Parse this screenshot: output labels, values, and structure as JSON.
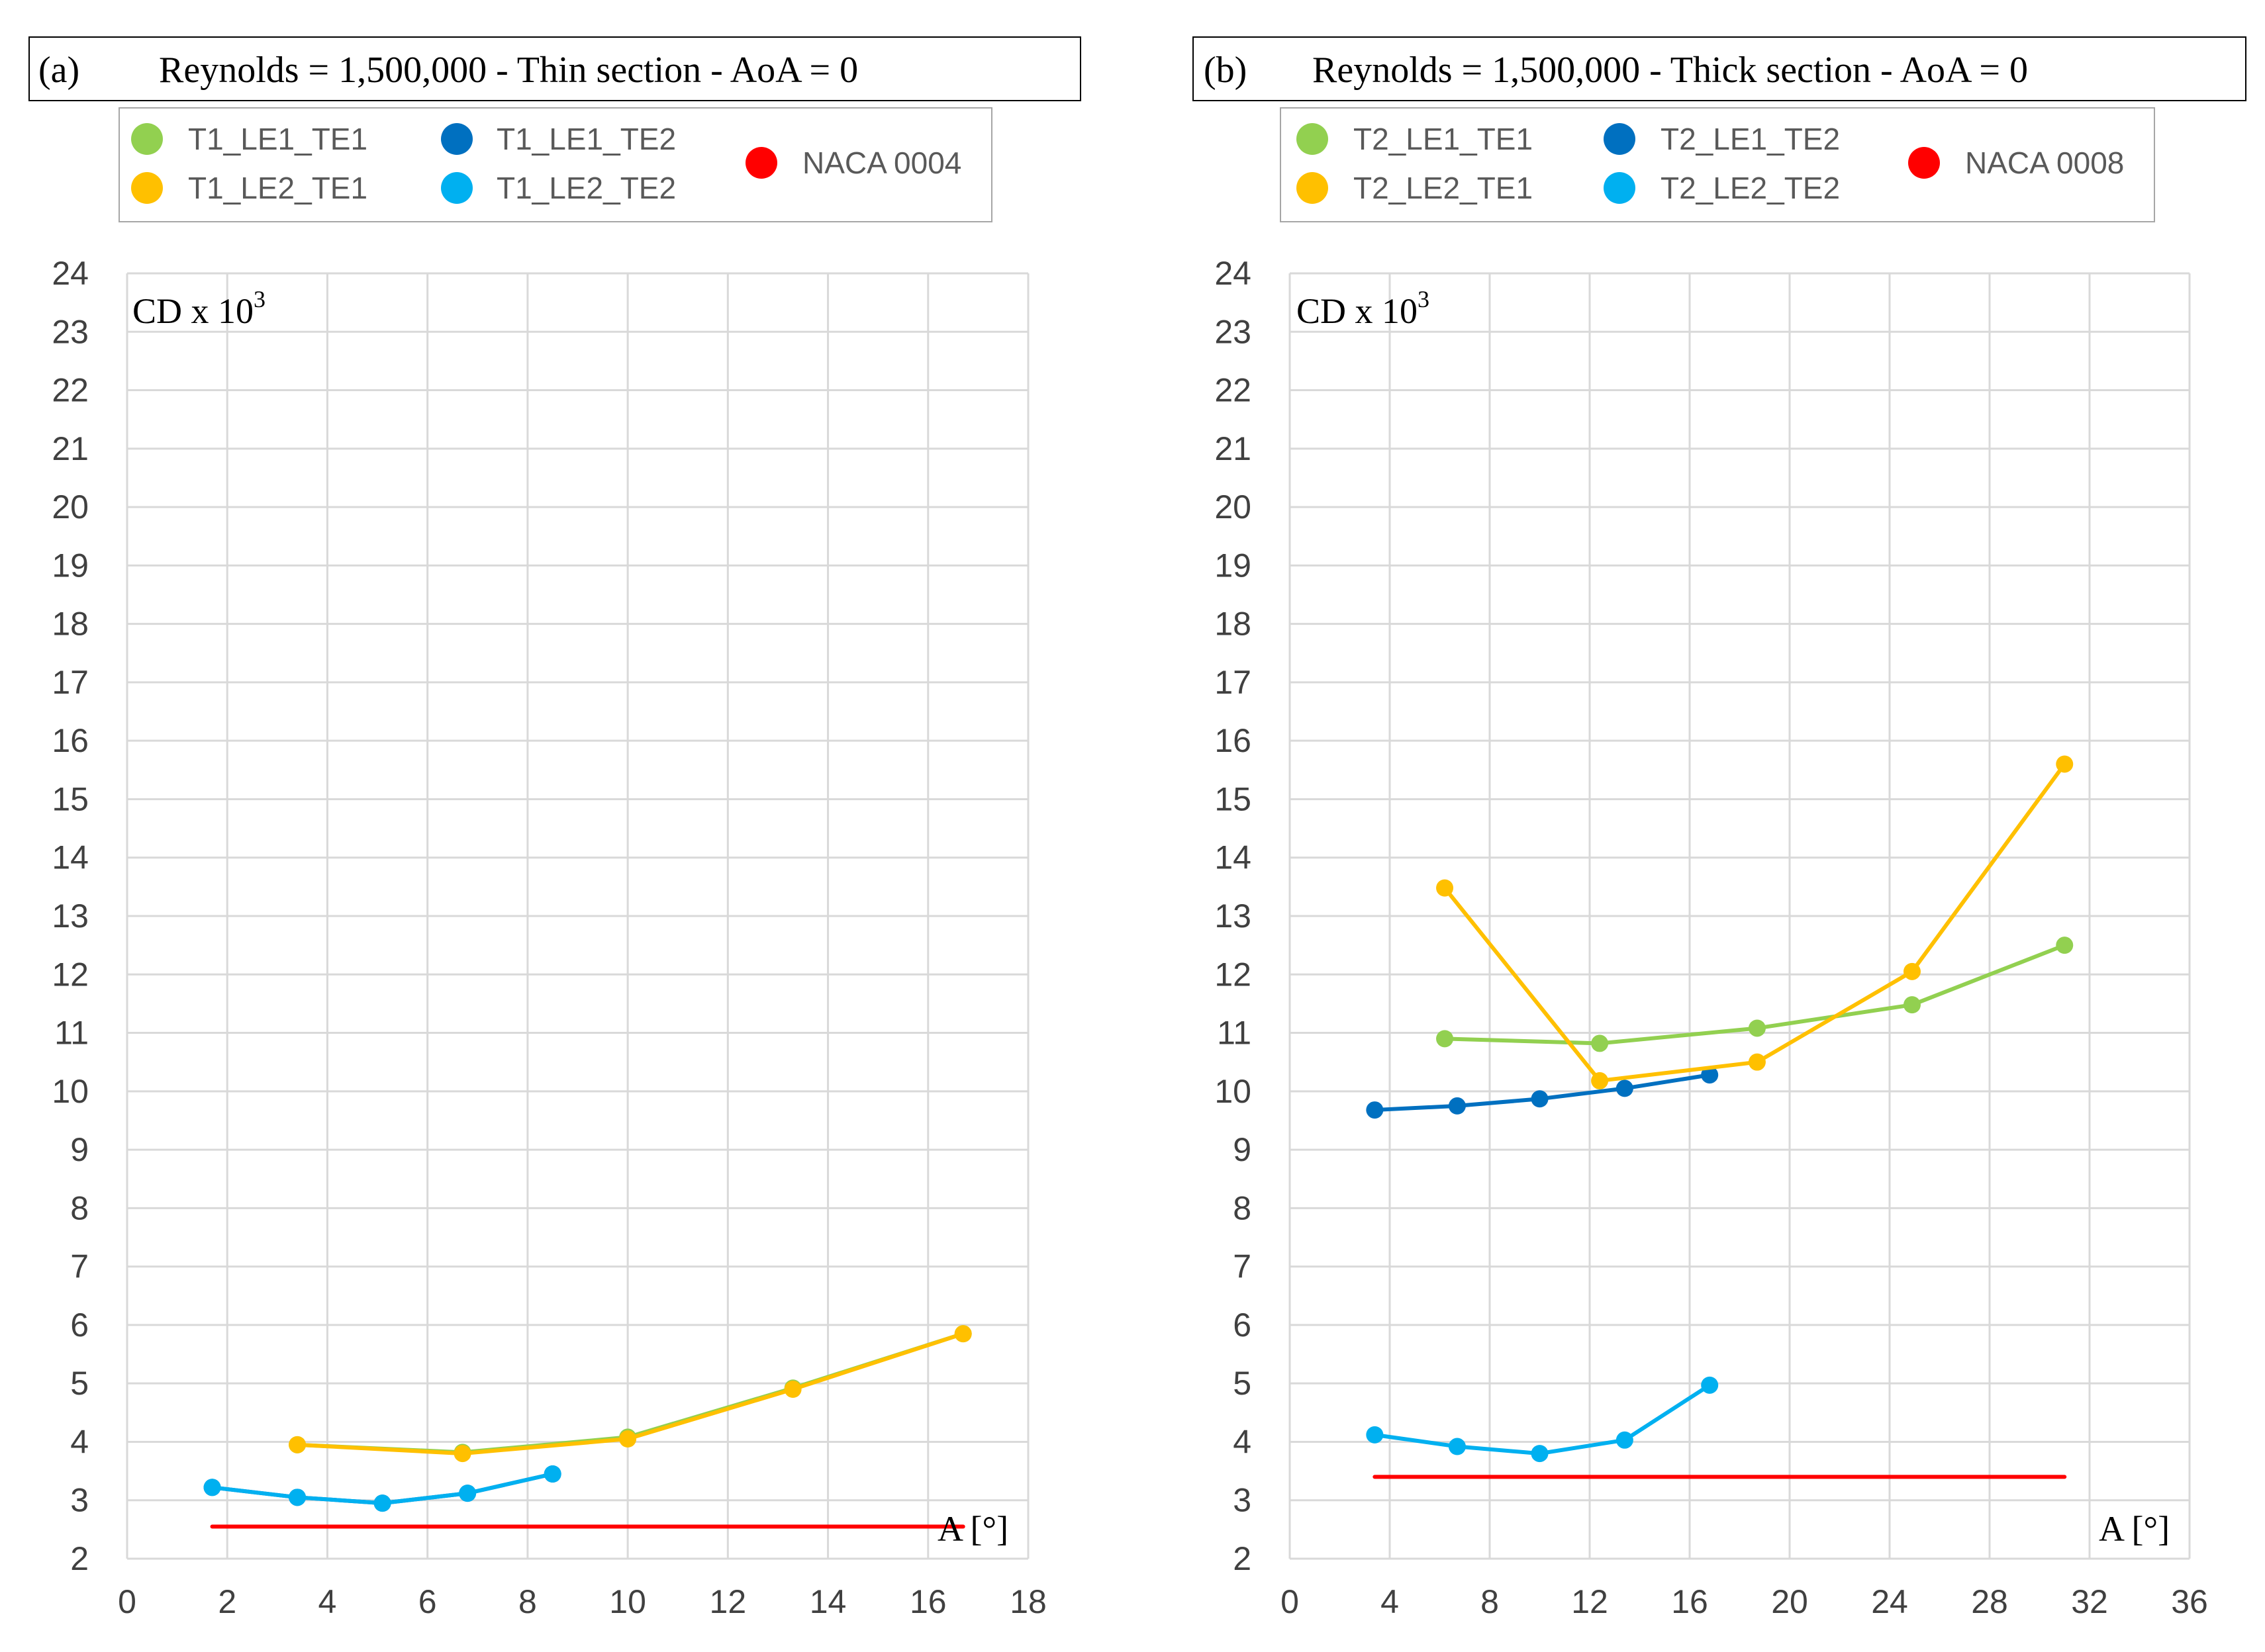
{
  "chart_data": [
    {
      "panel_label": "(a)",
      "type": "line",
      "title": "Reynolds = 1,500,000 - Thin section - AoA = 0",
      "ylabel_main": "CD",
      "ylabel_rest": " x 10",
      "ylabel_exp": "3",
      "xlabel": "A [°]",
      "xlim": [
        0,
        18
      ],
      "ylim": [
        2,
        24
      ],
      "xticks": [
        0,
        2,
        4,
        6,
        8,
        10,
        12,
        14,
        16,
        18
      ],
      "yticks": [
        2,
        3,
        4,
        5,
        6,
        7,
        8,
        9,
        10,
        11,
        12,
        13,
        14,
        15,
        16,
        17,
        18,
        19,
        20,
        21,
        22,
        23,
        24
      ],
      "series": [
        {
          "name": "T1_LE1_TE1",
          "color": "#92d050",
          "x": [
            3.4,
            6.7,
            10.0,
            13.3,
            16.7
          ],
          "y": [
            3.95,
            3.82,
            4.08,
            4.92,
            5.85
          ]
        },
        {
          "name": "T1_LE1_TE2",
          "color": "#0070c0",
          "x": [
            1.7,
            3.4,
            5.1,
            6.8,
            8.5
          ],
          "y": [
            3.22,
            3.05,
            2.95,
            3.12,
            3.45
          ]
        },
        {
          "name": "T1_LE2_TE1",
          "color": "#ffc000",
          "x": [
            3.4,
            6.7,
            10.0,
            13.3,
            16.7
          ],
          "y": [
            3.95,
            3.8,
            4.05,
            4.9,
            5.85
          ]
        },
        {
          "name": "T1_LE2_TE2",
          "color": "#00b0f0",
          "x": [
            1.7,
            3.4,
            5.1,
            6.8,
            8.5
          ],
          "y": [
            3.22,
            3.05,
            2.95,
            3.12,
            3.45
          ]
        },
        {
          "name": "NACA 0004",
          "color": "#ff0000",
          "x": [
            1.7,
            16.7
          ],
          "y": [
            2.55,
            2.55
          ],
          "markers": false
        }
      ]
    },
    {
      "panel_label": "(b)",
      "type": "line",
      "title": "Reynolds = 1,500,000 - Thick section - AoA = 0",
      "ylabel_main": "CD",
      "ylabel_rest": " x 10",
      "ylabel_exp": "3",
      "xlabel": "A [°]",
      "xlim": [
        0,
        36
      ],
      "ylim": [
        2,
        24
      ],
      "xticks": [
        0,
        4,
        8,
        12,
        16,
        20,
        24,
        28,
        32,
        36
      ],
      "yticks": [
        2,
        3,
        4,
        5,
        6,
        7,
        8,
        9,
        10,
        11,
        12,
        13,
        14,
        15,
        16,
        17,
        18,
        19,
        20,
        21,
        22,
        23,
        24
      ],
      "series": [
        {
          "name": "T2_LE1_TE1",
          "color": "#92d050",
          "x": [
            6.2,
            12.4,
            18.7,
            24.9,
            31.0
          ],
          "y": [
            10.9,
            10.82,
            11.08,
            11.48,
            12.5
          ]
        },
        {
          "name": "T2_LE1_TE2",
          "color": "#0070c0",
          "x": [
            3.4,
            6.7,
            10.0,
            13.4,
            16.8
          ],
          "y": [
            9.68,
            9.75,
            9.87,
            10.05,
            10.28
          ]
        },
        {
          "name": "T2_LE2_TE1",
          "color": "#ffc000",
          "x": [
            6.2,
            12.4,
            18.7,
            24.9,
            31.0
          ],
          "y": [
            13.48,
            10.18,
            10.5,
            12.05,
            15.6
          ]
        },
        {
          "name": "T2_LE2_TE2",
          "color": "#00b0f0",
          "x": [
            3.4,
            6.7,
            10.0,
            13.4,
            16.8
          ],
          "y": [
            4.12,
            3.92,
            3.8,
            4.03,
            4.97
          ]
        },
        {
          "name": "NACA 0008",
          "color": "#ff0000",
          "x": [
            3.4,
            31.0
          ],
          "y": [
            3.4,
            3.4
          ],
          "markers": false
        }
      ]
    }
  ]
}
